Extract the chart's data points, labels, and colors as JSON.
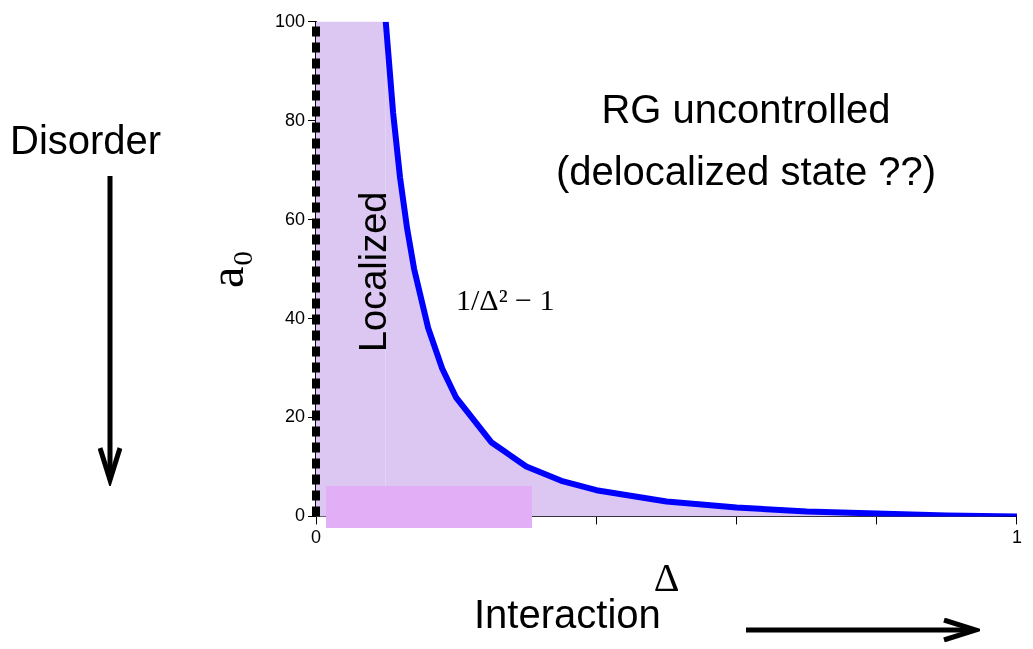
{
  "chart_data": {
    "type": "area",
    "xlabel": "Δ",
    "ylabel": "a₀",
    "x": [
      0.0995,
      0.11,
      0.12,
      0.13,
      0.14,
      0.16,
      0.18,
      0.2,
      0.25,
      0.3,
      0.35,
      0.4,
      0.5,
      0.6,
      0.7,
      0.8,
      0.9,
      1.0
    ],
    "series": [
      {
        "type": "area",
        "color": "#0000ff",
        "values": [
          100,
          81.6,
          68.4,
          58.2,
          50,
          38.1,
          29.9,
          24,
          15,
          10.1,
          7.2,
          5.3,
          3,
          1.8,
          1,
          0.6,
          0.2,
          0
        ]
      }
    ],
    "xlim": [
      0,
      1
    ],
    "xticks": [
      0,
      {
        "value": 0.2,
        "label": null
      },
      {
        "value": 0.4,
        "label": null
      },
      {
        "value": 0.6,
        "label": null
      },
      {
        "value": 0.8,
        "label": null
      },
      1
    ],
    "ylim": [
      0,
      100
    ],
    "yticks": [
      0,
      20,
      40,
      60,
      80,
      100
    ],
    "bands": [
      {
        "axis": "x",
        "from": 0,
        "to": 0.0995,
        "color": "#dcc6f2"
      }
    ],
    "ref_lines": [
      {
        "axis": "x",
        "value": 0,
        "color": "#000000",
        "line_style": "dashed"
      }
    ],
    "annotations": [
      "RG uncontrolled\n(delocalized state ??)",
      "Localized",
      "1/Δ² − 1",
      "Disorder",
      "Interaction"
    ],
    "grid": false,
    "legend": false
  }
}
